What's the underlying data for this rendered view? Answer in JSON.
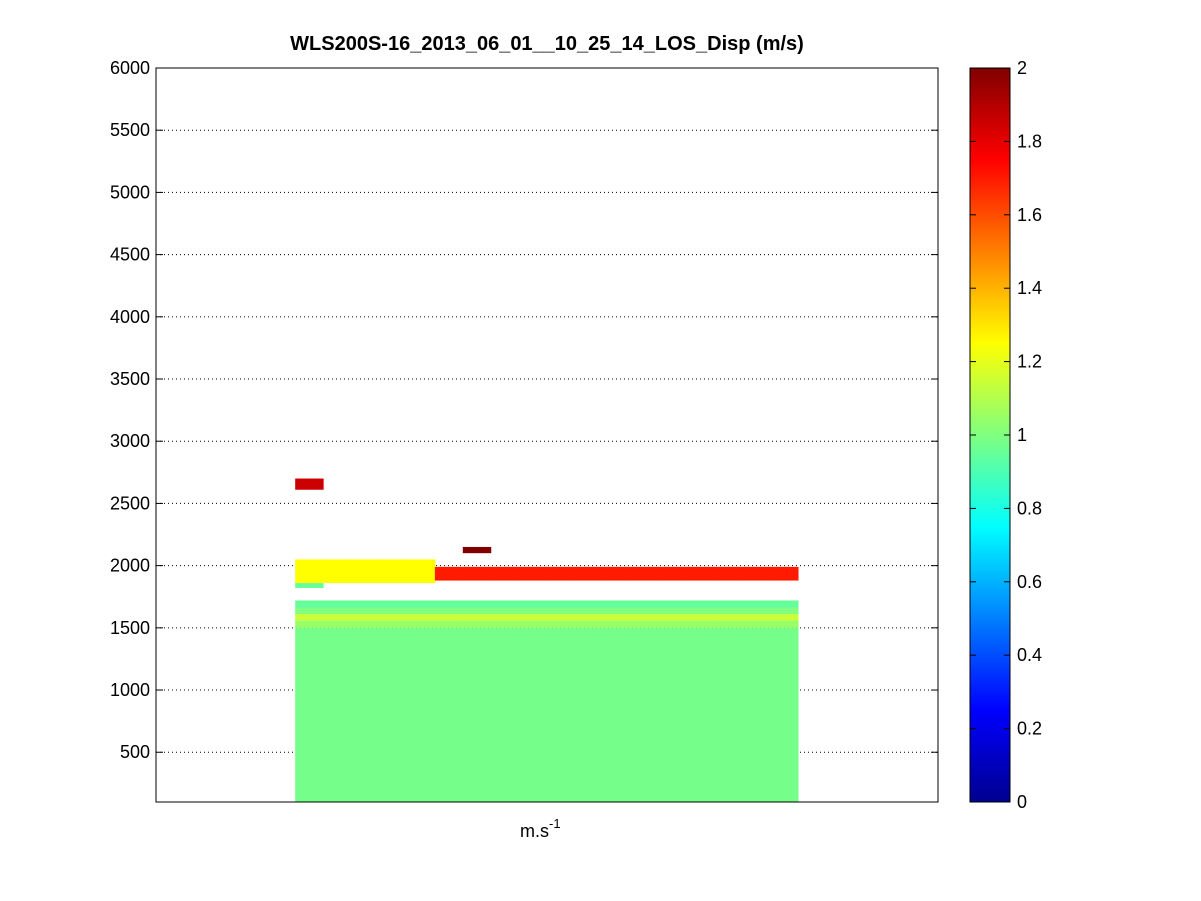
{
  "chart_data": {
    "type": "heatmap",
    "title": "WLS200S-16_2013_06_01__10_25_14_LOS_Disp (m/s)",
    "xlabel": {
      "base": "m.s",
      "exponent": "-1"
    },
    "ylabel": "",
    "ylim": [
      100,
      6000
    ],
    "yticks": [
      500,
      1000,
      1500,
      2000,
      2500,
      3000,
      3500,
      4000,
      4500,
      5000,
      5500,
      6000
    ],
    "ytick_labels": [
      "500",
      "1000",
      "1500",
      "2000",
      "2500",
      "3000",
      "3500",
      "4000",
      "4500",
      "5000",
      "5500",
      "6000"
    ],
    "grid": "y-dotted",
    "colorbar": {
      "colormap": "jet",
      "range": [
        0,
        2
      ],
      "ticks": [
        0,
        0.2,
        0.4,
        0.6,
        0.8,
        1,
        1.2,
        1.4,
        1.6,
        1.8,
        2
      ],
      "tick_labels": [
        "0",
        "0.2",
        "0.4",
        "0.6",
        "0.8",
        "1",
        "1.2",
        "1.4",
        "1.6",
        "1.8",
        "2"
      ]
    },
    "num_columns": 18,
    "column_span": [
      0.178,
      0.821
    ],
    "bins": [
      {
        "y0": 100,
        "y1": 1500,
        "cols": "all",
        "v": 0.98
      },
      {
        "y0": 1500,
        "y1": 1560,
        "cols": "all",
        "v": 1.05
      },
      {
        "y0": 1560,
        "y1": 1610,
        "cols": "all",
        "v": 1.15
      },
      {
        "y0": 1610,
        "y1": 1660,
        "cols": "all",
        "v": 1.0
      },
      {
        "y0": 1660,
        "y1": 1720,
        "cols": "all",
        "v": 0.95
      },
      {
        "y0": 1820,
        "y1": 1860,
        "cols": [
          0
        ],
        "v": 0.95
      },
      {
        "y0": 1860,
        "y1": 2050,
        "cols": [
          0,
          1,
          2,
          3,
          4
        ],
        "v": 1.25
      },
      {
        "y0": 1880,
        "y1": 1990,
        "cols": [
          5,
          6,
          7,
          8,
          9,
          10,
          11,
          12,
          13,
          14,
          15,
          16,
          17
        ],
        "v": 1.7
      },
      {
        "y0": 2100,
        "y1": 2150,
        "cols": [
          6
        ],
        "v": 2.0
      },
      {
        "y0": 2610,
        "y1": 2700,
        "cols": [
          0
        ],
        "v": 1.85
      }
    ]
  }
}
